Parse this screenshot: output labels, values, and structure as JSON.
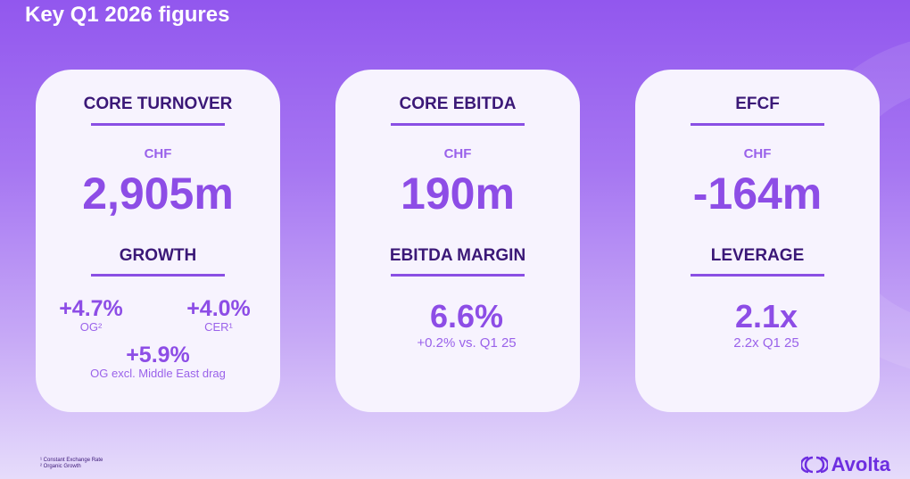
{
  "header": {
    "title": "Key Q1 2026 figures"
  },
  "cards": [
    {
      "title": "CORE TURNOVER",
      "currency": "CHF",
      "value": "2,905m",
      "subtitle": "GROWTH",
      "metrics": [
        {
          "value": "+4.7%",
          "label": "OG²"
        },
        {
          "value": "+4.0%",
          "label": "CER¹"
        },
        {
          "value": "+5.9%",
          "label": "OG excl. Middle East drag"
        }
      ]
    },
    {
      "title": "CORE EBITDA",
      "currency": "CHF",
      "value": "190m",
      "subtitle": "EBITDA MARGIN",
      "metrics": [
        {
          "value": "6.6%",
          "label": "+0.2% vs. Q1 25"
        }
      ]
    },
    {
      "title": "EFCF",
      "currency": "CHF",
      "value": "-164m",
      "subtitle": "LEVERAGE",
      "metrics": [
        {
          "value": "2.1x",
          "label": "2.2x Q1 25"
        }
      ]
    }
  ],
  "footnotes": [
    "¹ Constant Exchange Rate",
    "² Organic Growth"
  ],
  "logo": "Avolta"
}
